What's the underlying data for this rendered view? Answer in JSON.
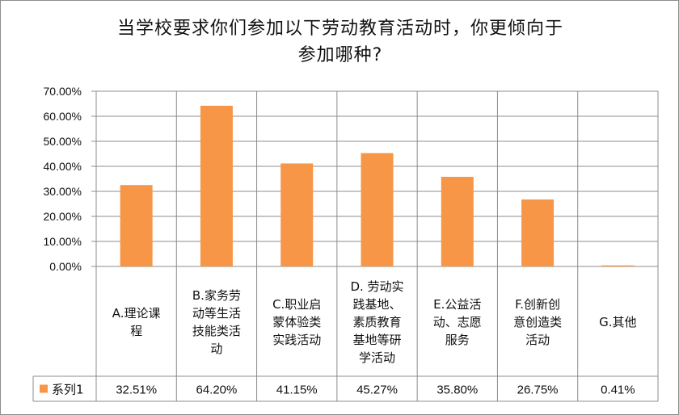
{
  "chart_data": {
    "type": "bar",
    "title_lines": [
      "当学校要求你们参加以下劳动教育活动时，你更倾向于",
      "参加哪种?"
    ],
    "categories": [
      [
        "A.理论课",
        "程"
      ],
      [
        "B.家务劳",
        "动等生活",
        "技能类活",
        "动"
      ],
      [
        "C.职业启",
        "蒙体验类",
        "实践活动"
      ],
      [
        "D. 劳动实",
        "践基地、",
        "素质教育",
        "基地等研",
        "学活动"
      ],
      [
        "E.公益活",
        "动、志愿",
        "服务"
      ],
      [
        "F.创新创",
        "意创造类",
        "活动"
      ],
      [
        "G.其他"
      ]
    ],
    "series": [
      {
        "name": "系列1",
        "color": "#f79646",
        "values": [
          32.51,
          64.2,
          41.15,
          45.27,
          35.8,
          26.75,
          0.41
        ],
        "labels": [
          "32.51%",
          "64.20%",
          "41.15%",
          "45.27%",
          "35.80%",
          "26.75%",
          "0.41%"
        ]
      }
    ],
    "y_ticks": [
      "0.00%",
      "10.00%",
      "20.00%",
      "30.00%",
      "40.00%",
      "50.00%",
      "60.00%",
      "70.00%"
    ],
    "ylim": [
      0,
      70
    ],
    "grid": true,
    "legend": "data-table"
  }
}
